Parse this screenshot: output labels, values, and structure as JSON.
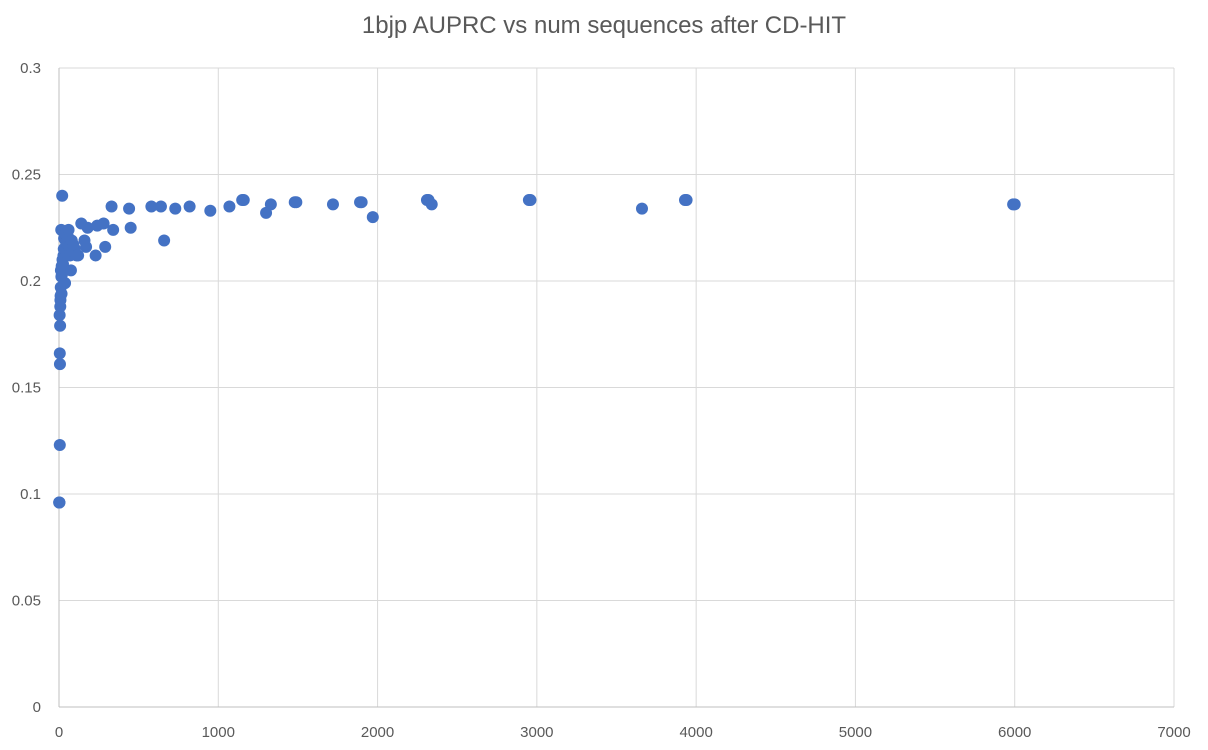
{
  "chart_data": {
    "type": "scatter",
    "title": "1bjp AUPRC vs num sequences after CD-HIT",
    "xlabel": "",
    "ylabel": "",
    "xlim": [
      0,
      7000
    ],
    "ylim": [
      0,
      0.3
    ],
    "x_ticks": [
      "0",
      "1000",
      "2000",
      "3000",
      "4000",
      "5000",
      "6000",
      "7000"
    ],
    "y_ticks": [
      "0",
      "0.05",
      "0.1",
      "0.15",
      "0.2",
      "0.25",
      "0.3"
    ],
    "x_tick_values": [
      0,
      1000,
      2000,
      3000,
      4000,
      5000,
      6000,
      7000
    ],
    "y_tick_values": [
      0,
      0.05,
      0.1,
      0.15,
      0.2,
      0.25,
      0.3
    ],
    "grid": true,
    "legend": "none",
    "color": "#4472c4",
    "x": [
      1,
      2,
      3,
      4,
      5,
      5,
      6,
      7,
      8,
      9,
      10,
      11,
      12,
      14,
      15,
      16,
      17,
      18,
      20,
      22,
      25,
      28,
      30,
      32,
      35,
      38,
      40,
      45,
      50,
      55,
      60,
      65,
      70,
      75,
      80,
      85,
      90,
      100,
      110,
      120,
      140,
      160,
      170,
      180,
      230,
      240,
      280,
      290,
      330,
      340,
      440,
      450,
      580,
      640,
      660,
      730,
      820,
      950,
      1070,
      1150,
      1160,
      1300,
      1330,
      1480,
      1490,
      1720,
      1890,
      1900,
      1970,
      2310,
      2320,
      2340,
      2950,
      2960,
      3660,
      3930,
      3940,
      5990,
      6000
    ],
    "y": [
      0.096,
      0.096,
      0.096,
      0.184,
      0.166,
      0.123,
      0.161,
      0.179,
      0.188,
      0.191,
      0.193,
      0.197,
      0.205,
      0.224,
      0.202,
      0.194,
      0.207,
      0.203,
      0.24,
      0.21,
      0.208,
      0.212,
      0.215,
      0.22,
      0.205,
      0.199,
      0.222,
      0.218,
      0.213,
      0.221,
      0.224,
      0.216,
      0.212,
      0.205,
      0.219,
      0.214,
      0.217,
      0.215,
      0.212,
      0.212,
      0.227,
      0.219,
      0.216,
      0.225,
      0.212,
      0.226,
      0.227,
      0.216,
      0.235,
      0.224,
      0.234,
      0.225,
      0.235,
      0.235,
      0.219,
      0.234,
      0.235,
      0.233,
      0.235,
      0.238,
      0.238,
      0.232,
      0.236,
      0.237,
      0.237,
      0.236,
      0.237,
      0.237,
      0.23,
      0.238,
      0.238,
      0.236,
      0.238,
      0.238,
      0.234,
      0.238,
      0.238,
      0.236,
      0.236
    ]
  }
}
